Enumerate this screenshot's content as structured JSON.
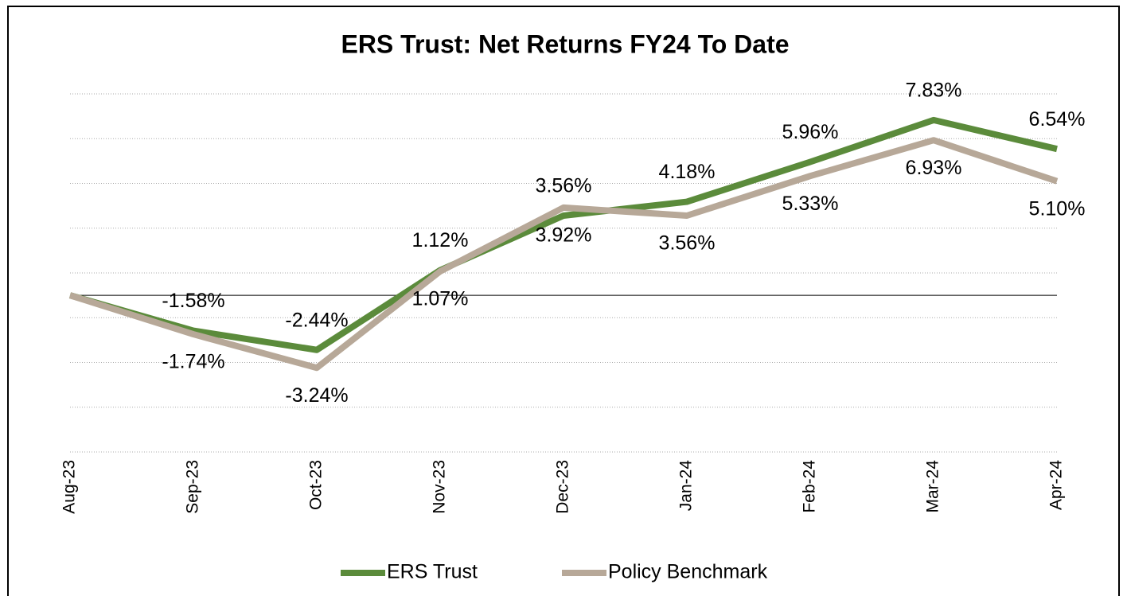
{
  "chart_data": {
    "type": "line",
    "title": "ERS Trust: Net Returns FY24 To Date",
    "categories": [
      "Aug-23",
      "Sep-23",
      "Oct-23",
      "Nov-23",
      "Dec-23",
      "Jan-24",
      "Feb-24",
      "Mar-24",
      "Apr-24"
    ],
    "series": [
      {
        "name": "ERS Trust",
        "color": "#5b8b3b",
        "values": [
          0,
          -1.58,
          -2.44,
          1.12,
          3.56,
          4.18,
          5.96,
          7.83,
          6.54
        ],
        "value_labels": [
          null,
          "-1.58%",
          "-2.44%",
          "1.12%",
          "3.56%",
          "4.18%",
          "5.96%",
          "7.83%",
          "6.54%"
        ]
      },
      {
        "name": "Policy Benchmark",
        "color": "#b7a898",
        "values": [
          0,
          -1.74,
          -3.24,
          1.07,
          3.92,
          3.56,
          5.33,
          6.93,
          5.1
        ],
        "value_labels": [
          null,
          "-1.74%",
          "-3.24%",
          "1.07%",
          "3.92%",
          "3.56%",
          "5.33%",
          "6.93%",
          "5.10%"
        ]
      }
    ],
    "ylim": [
      -7,
      9
    ],
    "yticks": [
      -7,
      -5,
      -3,
      -1,
      1,
      3,
      5,
      7,
      9
    ],
    "grid": true,
    "legend": "bottom"
  }
}
